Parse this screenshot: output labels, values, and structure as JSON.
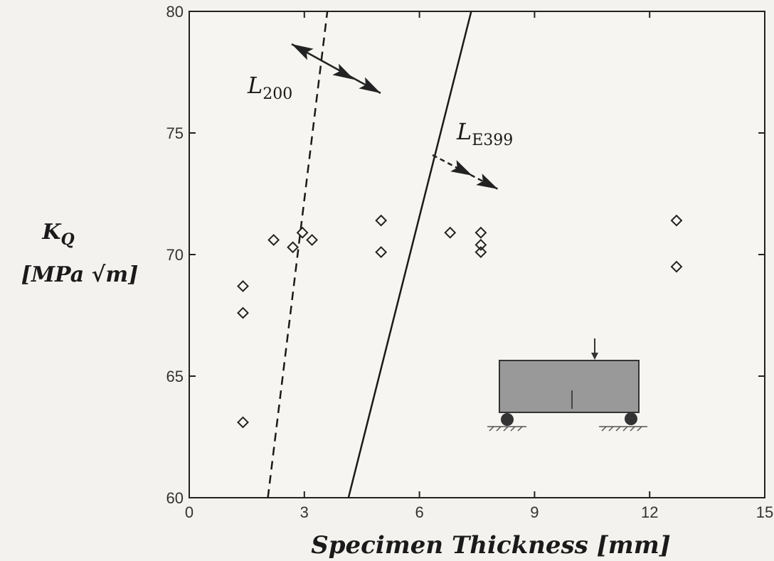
{
  "chart_data": {
    "type": "scatter",
    "title": "",
    "xlabel": "Specimen Thickness [mm]",
    "ylabel_line1": "K",
    "ylabel_sub": "Q",
    "ylabel_line2": "[MPa √m]",
    "xlim": [
      0,
      15
    ],
    "ylim": [
      60,
      80
    ],
    "xticks": [
      0,
      3,
      6,
      9,
      12,
      15
    ],
    "yticks": [
      60,
      65,
      70,
      75,
      80
    ],
    "grid": false,
    "series": [
      {
        "marker": "diamond",
        "points": [
          {
            "x": 1.4,
            "y": 68.7
          },
          {
            "x": 1.4,
            "y": 67.6
          },
          {
            "x": 1.4,
            "y": 63.1
          },
          {
            "x": 2.2,
            "y": 70.6
          },
          {
            "x": 2.7,
            "y": 70.3
          },
          {
            "x": 2.95,
            "y": 70.9
          },
          {
            "x": 3.2,
            "y": 70.6
          },
          {
            "x": 5.0,
            "y": 71.4
          },
          {
            "x": 5.0,
            "y": 70.1
          },
          {
            "x": 6.8,
            "y": 70.9
          },
          {
            "x": 7.6,
            "y": 70.9
          },
          {
            "x": 7.6,
            "y": 70.4
          },
          {
            "x": 7.6,
            "y": 70.1
          },
          {
            "x": 12.7,
            "y": 71.4
          },
          {
            "x": 12.7,
            "y": 69.5
          }
        ]
      }
    ],
    "lines": [
      {
        "label_main": "L",
        "label_sub": "200",
        "style": "dashed",
        "x1": 2.05,
        "y1": 60,
        "x2": 3.6,
        "y2": 80
      },
      {
        "label_main": "L",
        "label_sub": "E399",
        "style": "solid",
        "x1": 4.15,
        "y1": 60,
        "x2": 7.35,
        "y2": 80
      }
    ],
    "legend": "none",
    "inset": "three-point bend specimen sketch"
  }
}
